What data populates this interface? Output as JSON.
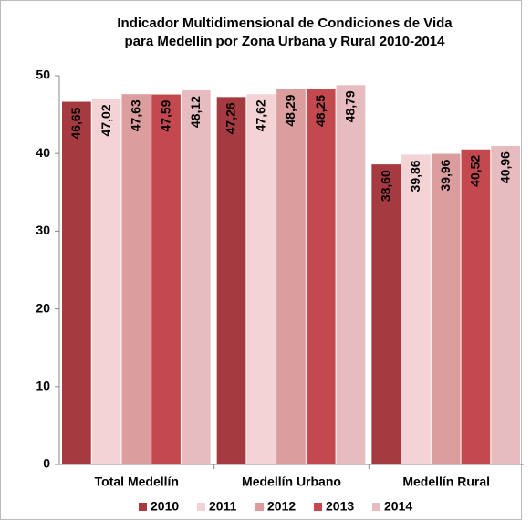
{
  "chart_data": {
    "type": "bar",
    "title": [
      "Indicador Multidimensional de Condiciones de Vida",
      "para Medellín por Zona Urbana y Rural 2010-2014"
    ],
    "categories": [
      "Total Medellín",
      "Medellín Urbano",
      "Medellín Rural"
    ],
    "series": [
      {
        "name": "2010",
        "color": "#a53a40",
        "values": [
          46.65,
          47.26,
          38.6
        ],
        "value_labels": [
          "46,65",
          "47,26",
          "38,60"
        ]
      },
      {
        "name": "2011",
        "color": "#f3d3d5",
        "values": [
          47.02,
          47.62,
          39.86
        ],
        "value_labels": [
          "47,02",
          "47,62",
          "39,86"
        ]
      },
      {
        "name": "2012",
        "color": "#dc9d9e",
        "values": [
          47.63,
          48.29,
          39.96
        ],
        "value_labels": [
          "47,63",
          "48,29",
          "39,96"
        ]
      },
      {
        "name": "2013",
        "color": "#c4494e",
        "values": [
          47.59,
          48.25,
          40.52
        ],
        "value_labels": [
          "47,59",
          "48,25",
          "40,52"
        ]
      },
      {
        "name": "2014",
        "color": "#e7bcc0",
        "values": [
          48.12,
          48.79,
          40.96
        ],
        "value_labels": [
          "48,12",
          "48,79",
          "40,96"
        ]
      }
    ],
    "ylim": [
      0,
      50
    ],
    "yticks": [
      0,
      10,
      20,
      30,
      40,
      50
    ],
    "grid": false,
    "legend": "bottom"
  }
}
